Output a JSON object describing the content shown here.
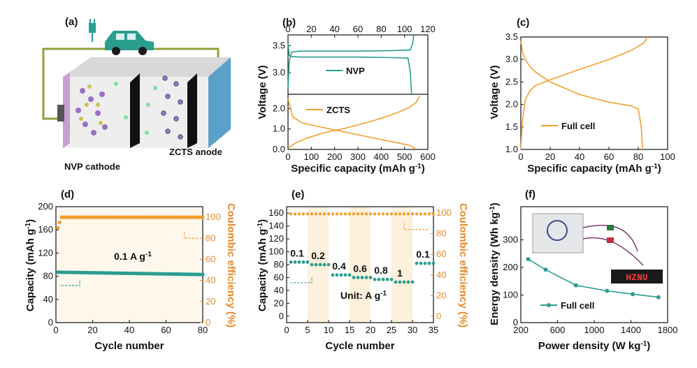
{
  "colors": {
    "teal": "#2a9d8f",
    "orange": "#f0a030",
    "orange_axis": "#e8882a",
    "band": "#fdf0dc",
    "dark": "#1a1a1a"
  },
  "schematic": {
    "label": "(a)",
    "cathode": "NVP cathode",
    "anode": "ZCTS anode"
  },
  "chart_data": [
    {
      "panel": "(b)",
      "type": "line",
      "subplots": [
        {
          "name": "NVP",
          "x_top_ticks": [
            "0",
            "20",
            "40",
            "60",
            "80",
            "100",
            "120"
          ],
          "xlim": [
            0,
            120
          ],
          "ylim": [
            2.6,
            3.7
          ],
          "yticks": [
            "3.0",
            "3.5"
          ],
          "series": [
            {
              "name": "NVP charge",
              "x": [
                0,
                1,
                3,
                10,
                30,
                60,
                90,
                105,
                107,
                108
              ],
              "y": [
                2.7,
                3.2,
                3.38,
                3.4,
                3.4,
                3.4,
                3.41,
                3.42,
                3.55,
                3.7
              ]
            },
            {
              "name": "NVP discharge",
              "x": [
                0,
                1,
                3,
                10,
                30,
                60,
                90,
                103,
                105,
                106
              ],
              "y": [
                3.55,
                3.32,
                3.3,
                3.29,
                3.29,
                3.29,
                3.28,
                3.27,
                3.0,
                2.6
              ]
            }
          ]
        },
        {
          "name": "ZCTS",
          "xlabel": "Specific capacity (mAh g-1)",
          "xticks": [
            "0",
            "100",
            "200",
            "300",
            "400",
            "500",
            "600"
          ],
          "xlim": [
            0,
            600
          ],
          "ylim": [
            0,
            2.7
          ],
          "yticks": [
            "0.0",
            "1.0",
            "2.0"
          ],
          "series": [
            {
              "name": "ZCTS discharge",
              "x": [
                0,
                20,
                60,
                120,
                200,
                300,
                400,
                480,
                520,
                540,
                545
              ],
              "y": [
                2.5,
                1.6,
                1.3,
                1.15,
                0.95,
                0.72,
                0.48,
                0.3,
                0.2,
                0.1,
                0.02
              ]
            },
            {
              "name": "ZCTS charge",
              "x": [
                0,
                30,
                80,
                150,
                250,
                350,
                420,
                480,
                520,
                550,
                565
              ],
              "y": [
                0.05,
                0.3,
                0.55,
                0.8,
                1.05,
                1.35,
                1.6,
                1.85,
                2.05,
                2.3,
                2.6
              ]
            }
          ]
        }
      ],
      "ylabel": "Voltage (V)",
      "legend": [
        "NVP",
        "ZCTS"
      ]
    },
    {
      "panel": "(c)",
      "type": "line",
      "xlabel": "Specific capacity (mAh g-1)",
      "ylabel": "Voltage (V)",
      "xlim": [
        0,
        100
      ],
      "ylim": [
        1.0,
        3.5
      ],
      "xticks": [
        "0",
        "20",
        "40",
        "60",
        "80",
        "100"
      ],
      "yticks": [
        "1.0",
        "1.5",
        "2.0",
        "2.5",
        "3.0",
        "3.5"
      ],
      "legend": [
        "Full cell"
      ],
      "series": [
        {
          "name": "charge",
          "x": [
            0,
            1,
            3,
            6,
            10,
            20,
            40,
            60,
            75,
            83,
            85,
            86
          ],
          "y": [
            1.0,
            1.6,
            2.1,
            2.3,
            2.42,
            2.55,
            2.78,
            3.0,
            3.2,
            3.35,
            3.42,
            3.5
          ]
        },
        {
          "name": "discharge",
          "x": [
            0,
            1,
            3,
            6,
            10,
            20,
            40,
            60,
            75,
            80,
            82,
            83
          ],
          "y": [
            3.42,
            3.2,
            3.0,
            2.85,
            2.72,
            2.5,
            2.22,
            2.05,
            1.97,
            1.9,
            1.5,
            1.0
          ]
        }
      ]
    },
    {
      "panel": "(d)",
      "type": "scatter",
      "xlabel": "Cycle number",
      "ylabel": "Capacity (mAh g-1)",
      "ylabel_right": "Coulombic efficiency (%)",
      "xlim": [
        0,
        80
      ],
      "ylim": [
        0,
        200
      ],
      "ylim_right": [
        0,
        110
      ],
      "xticks": [
        "0",
        "20",
        "40",
        "60",
        "80"
      ],
      "yticks": [
        "0",
        "40",
        "80",
        "120",
        "160",
        "200"
      ],
      "yticks_right": [
        "0",
        "20",
        "40",
        "60",
        "80",
        "100"
      ],
      "annotation": "0.1 A g-1",
      "series": [
        {
          "name": "Capacity",
          "start": 87,
          "end": 83,
          "cycles": 80
        },
        {
          "name": "Coulombic efficiency",
          "start": 90,
          "end": 100,
          "cycles": 80
        }
      ]
    },
    {
      "panel": "(e)",
      "type": "scatter",
      "xlabel": "Cycle number",
      "ylabel": "Capacity (mAh g-1)",
      "ylabel_right": "Coulombic efficiency (%)",
      "xlim": [
        0,
        35
      ],
      "ylim": [
        -10,
        170
      ],
      "ylim_right": [
        -6,
        106
      ],
      "xticks": [
        "0",
        "5",
        "10",
        "15",
        "20",
        "25",
        "30",
        "35"
      ],
      "yticks": [
        "0",
        "20",
        "40",
        "60",
        "80",
        "100",
        "120",
        "140",
        "160"
      ],
      "yticks_right": [
        "0",
        "20",
        "40",
        "60",
        "80",
        "100"
      ],
      "annotation": "Unit: A g-1",
      "rate_labels": [
        "0.1",
        "0.2",
        "0.4",
        "0.6",
        "0.8",
        "1",
        "0.1"
      ],
      "rate_capacity": [
        84,
        80,
        64,
        60,
        57,
        53,
        82
      ],
      "ce_value": 99
    },
    {
      "panel": "(f)",
      "type": "line",
      "xlabel": "Power density (W kg-1)",
      "ylabel": "Energy density (Wh kg-1)",
      "xlim": [
        200,
        1800
      ],
      "ylim": [
        0,
        420
      ],
      "xticks": [
        "200",
        "600",
        "1000",
        "1400",
        "1800"
      ],
      "yticks": [
        "0",
        "100",
        "200",
        "300"
      ],
      "legend": [
        "Full cell"
      ],
      "inset_text": "HZNU",
      "x": [
        280,
        470,
        800,
        1140,
        1420,
        1700
      ],
      "y": [
        230,
        192,
        135,
        115,
        103,
        92
      ]
    }
  ]
}
